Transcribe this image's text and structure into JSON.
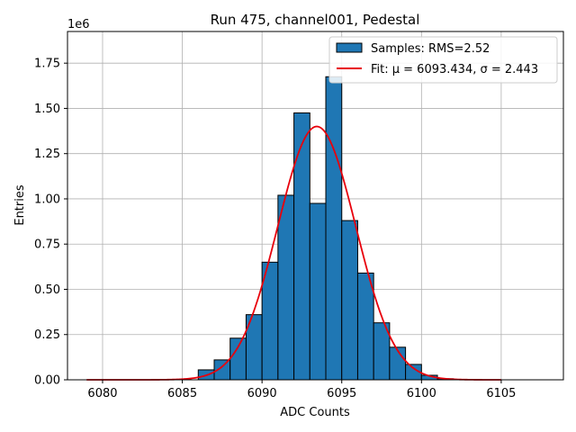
{
  "chart_data": {
    "type": "bar",
    "title": "Run 475, channel001, Pedestal",
    "xlabel": "ADC Counts",
    "ylabel": "Entries",
    "y_multiplier": "1e6",
    "xlim": [
      6077.8,
      6108.9
    ],
    "ylim": [
      0,
      1.925
    ],
    "xticks": [
      6080,
      6085,
      6090,
      6095,
      6100,
      6105
    ],
    "yticks": [
      0.0,
      0.25,
      0.5,
      0.75,
      1.0,
      1.25,
      1.5,
      1.75
    ],
    "ytick_labels": [
      "0.00",
      "0.25",
      "0.50",
      "0.75",
      "1.00",
      "1.25",
      "1.50",
      "1.75"
    ],
    "grid": true,
    "legend_position": "top-right",
    "histogram": {
      "name": "Samples: RMS=2.52",
      "color": "#1f77b4",
      "edgecolor": "#000000",
      "bins": [
        {
          "x0": 6086.0,
          "x1": 6087.0,
          "value": 0.055
        },
        {
          "x0": 6087.0,
          "x1": 6088.0,
          "value": 0.11
        },
        {
          "x0": 6088.0,
          "x1": 6089.0,
          "value": 0.23
        },
        {
          "x0": 6089.0,
          "x1": 6090.0,
          "value": 0.36
        },
        {
          "x0": 6090.0,
          "x1": 6091.0,
          "value": 0.65
        },
        {
          "x0": 6091.0,
          "x1": 6092.0,
          "value": 1.02
        },
        {
          "x0": 6092.0,
          "x1": 6093.0,
          "value": 1.475
        },
        {
          "x0": 6093.0,
          "x1": 6094.0,
          "value": 0.975
        },
        {
          "x0": 6094.0,
          "x1": 6095.0,
          "value": 1.675
        },
        {
          "x0": 6095.0,
          "x1": 6096.0,
          "value": 0.88
        },
        {
          "x0": 6096.0,
          "x1": 6097.0,
          "value": 0.59
        },
        {
          "x0": 6097.0,
          "x1": 6098.0,
          "value": 0.315
        },
        {
          "x0": 6098.0,
          "x1": 6099.0,
          "value": 0.18
        },
        {
          "x0": 6099.0,
          "x1": 6100.0,
          "value": 0.085
        },
        {
          "x0": 6100.0,
          "x1": 6101.0,
          "value": 0.025
        },
        {
          "x0": 6101.0,
          "x1": 6102.0,
          "value": 0.006
        }
      ]
    },
    "fit": {
      "name": "Fit: μ = 6093.434, σ = 2.443",
      "color": "#e8000b",
      "mu": 6093.434,
      "sigma": 2.443,
      "amplitude": 1.4,
      "x_range": [
        6079,
        6105
      ]
    }
  }
}
